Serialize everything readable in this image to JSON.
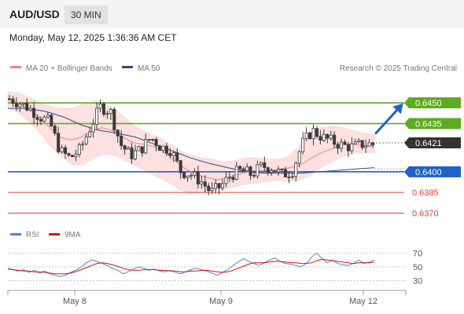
{
  "header": {
    "symbol": "AUD/USD",
    "timeframe": "30 MIN",
    "datetime": "Monday, May 12, 2025 1:36:36 AM CET"
  },
  "legend": {
    "ma20": "MA 20 + Bollinger Bands",
    "ma50": "MA 50",
    "credit": "Research © 2025 Trading Central",
    "rsi": "RSI",
    "ma9": "9MA"
  },
  "colors": {
    "candle": "#3a3a3a",
    "ma20": "#f08080",
    "bollinger_fill": "#fde1e1",
    "ma50": "#2e4a7d",
    "resistance": "#5cac1e",
    "support": "#2060c8",
    "support_minor": "#e04040",
    "last_price": "#333333",
    "arrow": "#2060c8",
    "rsi": "#5b7fe0",
    "rsi_ma": "#dd1111"
  },
  "chart_data": [
    {
      "type": "candlestick",
      "title": "AUD/USD",
      "x_labels": [
        "May 8",
        "May 9",
        "May 12"
      ],
      "ylim": [
        0.6364,
        0.6462
      ],
      "current_price": 0.6421,
      "levels": [
        {
          "label": "0.6450",
          "value": 0.645,
          "kind": "resistance"
        },
        {
          "label": "0.6435",
          "value": 0.6435,
          "kind": "resistance"
        },
        {
          "label": "0.6400",
          "value": 0.64,
          "kind": "support"
        },
        {
          "label": "0.6385",
          "value": 0.6385,
          "kind": "support-minor"
        },
        {
          "label": "0.6370",
          "value": 0.637,
          "kind": "support-minor"
        }
      ],
      "close_path": [
        0.6453,
        0.645,
        0.6446,
        0.644,
        0.6436,
        0.6415,
        0.641,
        0.6416,
        0.6432,
        0.6447,
        0.6444,
        0.642,
        0.6412,
        0.6416,
        0.6425,
        0.6418,
        0.6416,
        0.64,
        0.6398,
        0.6393,
        0.6385,
        0.639,
        0.6398,
        0.6401,
        0.6398,
        0.6404,
        0.6403,
        0.6398,
        0.64,
        0.642,
        0.643,
        0.6425,
        0.6422,
        0.6419,
        0.6418,
        0.642,
        0.642
      ],
      "ma20_path": [
        0.6452,
        0.645,
        0.6445,
        0.644,
        0.6432,
        0.6425,
        0.6423,
        0.6425,
        0.643,
        0.6432,
        0.643,
        0.6425,
        0.6421,
        0.642,
        0.6418,
        0.6414,
        0.6408,
        0.6402,
        0.6398,
        0.6396,
        0.6394,
        0.6396,
        0.6398,
        0.64,
        0.6401,
        0.6401,
        0.6402,
        0.6403,
        0.6405,
        0.641,
        0.6414,
        0.6417,
        0.642,
        0.642,
        0.6419,
        0.6419
      ],
      "bb_upper_path": [
        0.6458,
        0.6457,
        0.6454,
        0.645,
        0.6447,
        0.6446,
        0.6446,
        0.6449,
        0.6451,
        0.6449,
        0.6445,
        0.6438,
        0.6432,
        0.6428,
        0.6425,
        0.642,
        0.6415,
        0.6412,
        0.641,
        0.6409,
        0.6407,
        0.6408,
        0.641,
        0.641,
        0.6409,
        0.6409,
        0.6411,
        0.6418,
        0.6428,
        0.6432,
        0.6433,
        0.6432,
        0.643,
        0.6428,
        0.6427
      ],
      "bb_lower_path": [
        0.6446,
        0.6443,
        0.6436,
        0.6428,
        0.6418,
        0.6411,
        0.6405,
        0.6405,
        0.641,
        0.6413,
        0.6412,
        0.6408,
        0.6404,
        0.64,
        0.6396,
        0.6392,
        0.6387,
        0.6384,
        0.6385,
        0.6386,
        0.6387,
        0.6389,
        0.6391,
        0.6392,
        0.6393,
        0.6394,
        0.6393,
        0.6394,
        0.6397,
        0.6403,
        0.6407,
        0.6411,
        0.6413,
        0.6414,
        0.6414
      ],
      "ma50_path": [
        0.6446,
        0.6446,
        0.6444,
        0.644,
        0.6434,
        0.643,
        0.6428,
        0.6425,
        0.642,
        0.6415,
        0.641,
        0.6406,
        0.6403,
        0.64,
        0.6399,
        0.6399,
        0.6399,
        0.64,
        0.6401,
        0.6402,
        0.6403
      ]
    },
    {
      "type": "line",
      "title": "RSI",
      "y_ticks": [
        70,
        50,
        30
      ],
      "ylim": [
        25,
        75
      ],
      "series": [
        {
          "name": "RSI",
          "values": [
            48,
            46,
            44,
            46,
            42,
            45,
            41,
            44,
            40,
            38,
            36,
            38,
            42,
            45,
            50,
            56,
            60,
            58,
            55,
            52,
            48,
            45,
            40,
            43,
            47,
            50,
            48,
            45,
            47,
            44,
            43,
            45,
            42,
            40,
            43,
            46,
            48,
            46,
            44,
            41,
            38,
            42,
            46,
            52,
            57,
            62,
            58,
            55,
            52,
            56,
            60,
            63,
            58,
            55,
            54,
            52,
            50,
            55,
            64,
            70,
            62,
            56,
            60,
            55,
            53,
            52,
            55,
            60,
            55,
            57,
            60
          ]
        },
        {
          "name": "9MA",
          "values": [
            47,
            46,
            45,
            44,
            44,
            43,
            43,
            42,
            41,
            40,
            40,
            40,
            41,
            43,
            46,
            49,
            52,
            55,
            56,
            55,
            53,
            51,
            48,
            46,
            45,
            45,
            46,
            46,
            46,
            45,
            45,
            44,
            44,
            43,
            43,
            44,
            44,
            45,
            45,
            44,
            43,
            42,
            43,
            45,
            48,
            51,
            54,
            56,
            56,
            56,
            57,
            58,
            58,
            57,
            56,
            56,
            55,
            55,
            56,
            59,
            61,
            60,
            59,
            58,
            57,
            56,
            55,
            56,
            56,
            56,
            57
          ]
        }
      ]
    }
  ]
}
